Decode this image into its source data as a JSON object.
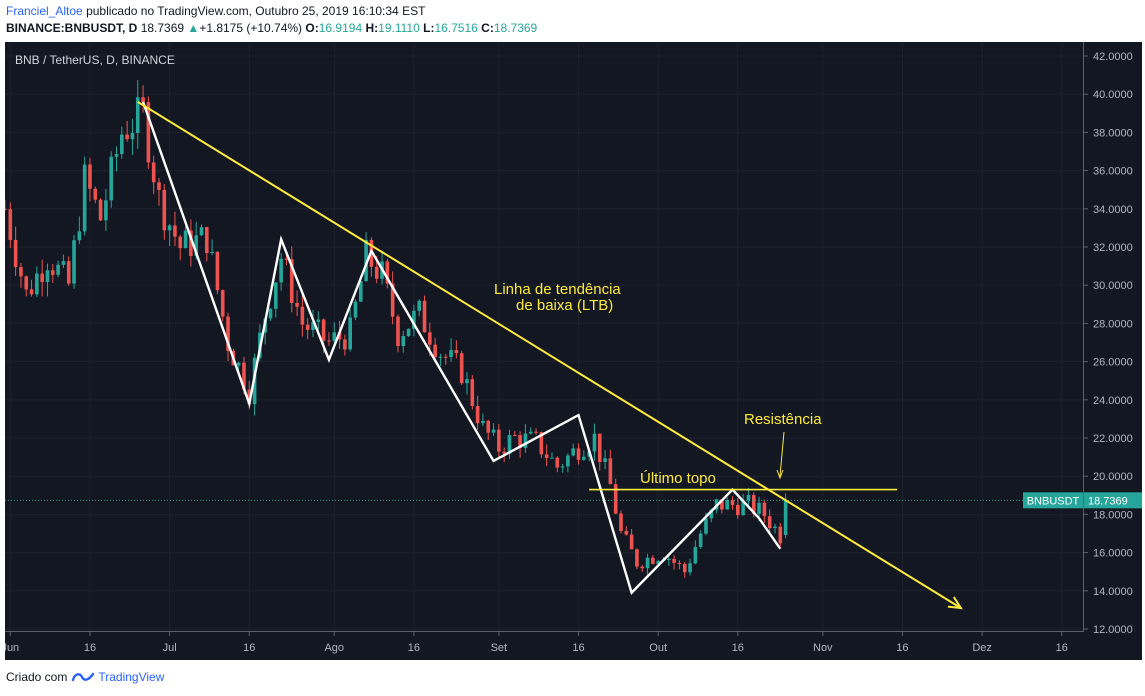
{
  "header": {
    "author": "Franciel_Altoe",
    "published_text": "publicado no TradingView.com, Outubro 25, 2019 16:10:34 EST",
    "symbol_line": "BINANCE:BNBUSDT, D",
    "last": "18.7369",
    "change": "+1.8175 (+10.74%)",
    "open_label": "O:",
    "open": "16.9194",
    "high_label": "H:",
    "high": "19.1110",
    "low_label": "L:",
    "low": "16.7516",
    "close_label": "C:",
    "close": "18.7369"
  },
  "footer": {
    "created_with": "Criado com",
    "brand": "TradingView"
  },
  "colors": {
    "background": "#131722",
    "up": "#26a69a",
    "down": "#ef5350",
    "annotation": "#ffeb3b",
    "pattern": "#ffffff",
    "label": "#26a69a"
  },
  "chart_data": {
    "type": "candlestick",
    "title": "BNB / TetherUS, D, BINANCE",
    "price_label": {
      "symbol": "BNBUSDT",
      "value": "18.7369",
      "price": 18.7369
    },
    "y_ticks": [
      "42.0000",
      "40.0000",
      "38.0000",
      "36.0000",
      "34.0000",
      "32.0000",
      "30.0000",
      "28.0000",
      "26.0000",
      "24.0000",
      "22.0000",
      "20.0000",
      "18.0000",
      "16.0000",
      "14.0000",
      "12.0000"
    ],
    "ylim": [
      12,
      42
    ],
    "x_ticks": [
      "Jun",
      "16",
      "Jul",
      "16",
      "Ago",
      "16",
      "Set",
      "16",
      "Out",
      "16",
      "Nov",
      "16",
      "Dez",
      "16"
    ],
    "x_tick_dates": [
      "2019-06-01",
      "2019-06-16",
      "2019-07-01",
      "2019-07-16",
      "2019-08-01",
      "2019-08-16",
      "2019-09-01",
      "2019-09-16",
      "2019-10-01",
      "2019-10-16",
      "2019-11-01",
      "2019-11-16",
      "2019-12-01",
      "2019-12-16"
    ],
    "xlim": [
      "2019-05-31",
      "2019-12-20"
    ],
    "ohlc_keyframes": {
      "date": [
        "2019-05-31",
        "2019-06-04",
        "2019-06-08",
        "2019-06-12",
        "2019-06-15",
        "2019-06-18",
        "2019-06-22",
        "2019-06-26",
        "2019-06-29",
        "2019-07-03",
        "2019-07-08",
        "2019-07-12",
        "2019-07-16",
        "2019-07-19",
        "2019-07-22",
        "2019-07-26",
        "2019-07-31",
        "2019-08-04",
        "2019-08-07",
        "2019-08-10",
        "2019-08-13",
        "2019-08-17",
        "2019-08-21",
        "2019-08-25",
        "2019-08-29",
        "2019-09-01",
        "2019-09-04",
        "2019-09-08",
        "2019-09-12",
        "2019-09-16",
        "2019-09-19",
        "2019-09-22",
        "2019-09-24",
        "2019-09-27",
        "2019-10-02",
        "2019-10-06",
        "2019-10-09",
        "2019-10-12",
        "2019-10-15",
        "2019-10-18",
        "2019-10-21",
        "2019-10-24",
        "2019-10-25"
      ],
      "close": [
        34.0,
        29.5,
        31.5,
        30.0,
        35.5,
        33.5,
        38.0,
        39.0,
        34.5,
        32.0,
        32.5,
        27.0,
        24.5,
        28.5,
        31.5,
        28.0,
        27.0,
        27.5,
        31.5,
        30.5,
        27.5,
        28.5,
        26.5,
        25.5,
        22.5,
        21.5,
        22.0,
        21.8,
        20.5,
        21.5,
        22.0,
        19.5,
        17.0,
        15.5,
        16.0,
        15.0,
        17.0,
        18.5,
        18.5,
        18.5,
        18.0,
        16.9,
        18.7369
      ]
    },
    "annotations": [
      {
        "text": "Linha de tendência",
        "text2": "de baixa (LTB)"
      },
      {
        "text": "Resistência"
      },
      {
        "text": "Último topo"
      }
    ],
    "trendline": {
      "from": [
        "2019-06-25",
        39.6
      ],
      "to": [
        "2019-11-27",
        13.1
      ],
      "style": "yellow line with arrow"
    },
    "resistance_line": {
      "from": [
        "2019-09-18",
        19.3
      ],
      "to": [
        "2019-11-15",
        19.3
      ]
    },
    "zigzag": [
      [
        "2019-06-26",
        39.6
      ],
      [
        "2019-07-16",
        23.8
      ],
      [
        "2019-07-22",
        32.4
      ],
      [
        "2019-07-31",
        26.1
      ],
      [
        "2019-08-08",
        31.8
      ],
      [
        "2019-08-31",
        20.8
      ],
      [
        "2019-09-16",
        23.2
      ],
      [
        "2019-09-26",
        13.9
      ],
      [
        "2019-10-15",
        19.3
      ],
      [
        "2019-10-20",
        17.8
      ],
      [
        "2019-10-24",
        16.2
      ]
    ]
  }
}
